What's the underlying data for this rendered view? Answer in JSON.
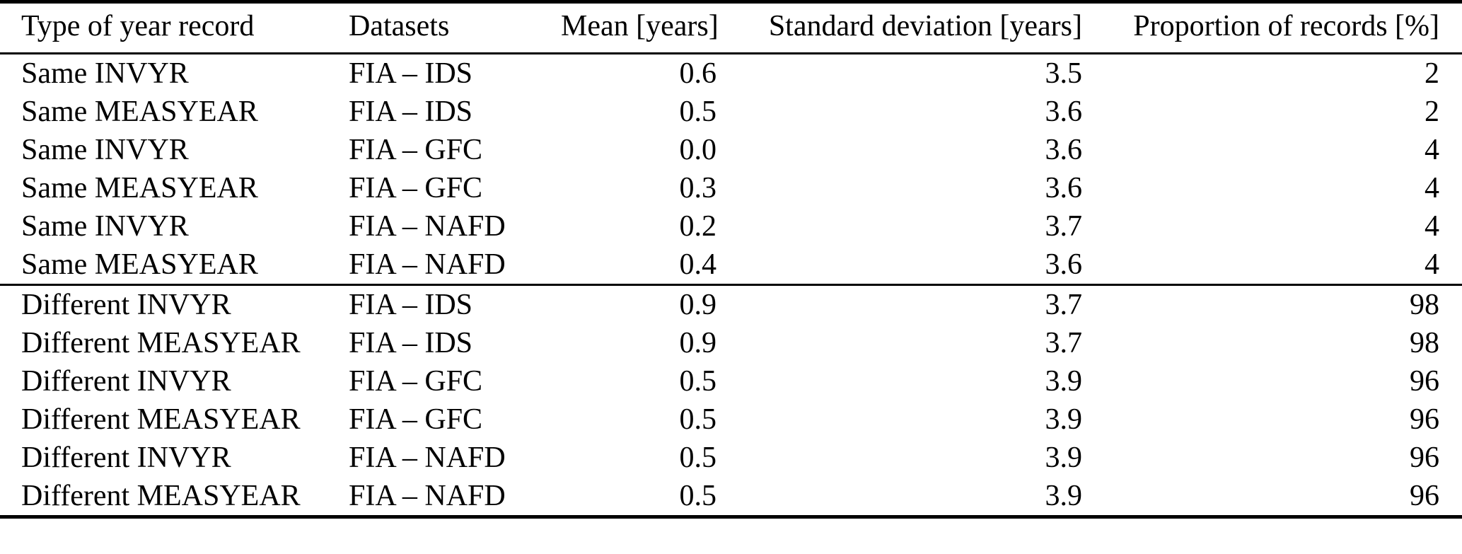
{
  "table": {
    "columns": [
      {
        "label": "Type of year record"
      },
      {
        "label": "Datasets"
      },
      {
        "label": "Mean [years]"
      },
      {
        "label": "Standard deviation [years]"
      },
      {
        "label": "Proportion of records [%]"
      }
    ],
    "groups": [
      {
        "name": "same-year-records",
        "rows": [
          [
            "Same INVYR",
            "FIA – IDS",
            "0.6",
            "3.5",
            "2"
          ],
          [
            "Same MEASYEAR",
            "FIA – IDS",
            "0.5",
            "3.6",
            "2"
          ],
          [
            "Same INVYR",
            "FIA – GFC",
            "0.0",
            "3.6",
            "4"
          ],
          [
            "Same MEASYEAR",
            "FIA – GFC",
            "0.3",
            "3.6",
            "4"
          ],
          [
            "Same INVYR",
            "FIA – NAFD",
            "0.2",
            "3.7",
            "4"
          ],
          [
            "Same MEASYEAR",
            "FIA – NAFD",
            "0.4",
            "3.6",
            "4"
          ]
        ]
      },
      {
        "name": "different-year-records",
        "rows": [
          [
            "Different INVYR",
            "FIA – IDS",
            "0.9",
            "3.7",
            "98"
          ],
          [
            "Different MEASYEAR",
            "FIA – IDS",
            "0.9",
            "3.7",
            "98"
          ],
          [
            "Different INVYR",
            "FIA – GFC",
            "0.5",
            "3.9",
            "96"
          ],
          [
            "Different MEASYEAR",
            "FIA – GFC",
            "0.5",
            "3.9",
            "96"
          ],
          [
            "Different INVYR",
            "FIA – NAFD",
            "0.5",
            "3.9",
            "96"
          ],
          [
            "Different MEASYEAR",
            "FIA – NAFD",
            "0.5",
            "3.9",
            "96"
          ]
        ]
      }
    ]
  },
  "chart_data": {
    "type": "table",
    "columns": [
      "Type of year record",
      "Datasets",
      "Mean [years]",
      "Standard deviation [years]",
      "Proportion of records [%]"
    ],
    "rows_same": [
      [
        "Same INVYR",
        "FIA – IDS",
        0.6,
        3.5,
        2
      ],
      [
        "Same MEASYEAR",
        "FIA – IDS",
        0.5,
        3.6,
        2
      ],
      [
        "Same INVYR",
        "FIA – GFC",
        0.0,
        3.6,
        4
      ],
      [
        "Same MEASYEAR",
        "FIA – GFC",
        0.3,
        3.6,
        4
      ],
      [
        "Same INVYR",
        "FIA – NAFD",
        0.2,
        3.7,
        4
      ],
      [
        "Same MEASYEAR",
        "FIA – NAFD",
        0.4,
        3.6,
        4
      ]
    ],
    "rows_different": [
      [
        "Different INVYR",
        "FIA – IDS",
        0.9,
        3.7,
        98
      ],
      [
        "Different MEASYEAR",
        "FIA – IDS",
        0.9,
        3.7,
        98
      ],
      [
        "Different INVYR",
        "FIA – GFC",
        0.5,
        3.9,
        96
      ],
      [
        "Different MEASYEAR",
        "FIA – GFC",
        0.5,
        3.9,
        96
      ],
      [
        "Different INVYR",
        "FIA – NAFD",
        0.5,
        3.9,
        96
      ],
      [
        "Different MEASYEAR",
        "FIA – NAFD",
        0.5,
        3.9,
        96
      ]
    ]
  }
}
